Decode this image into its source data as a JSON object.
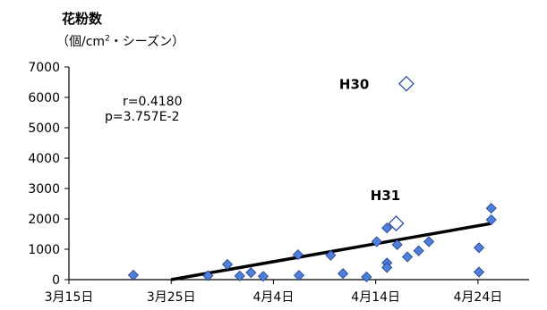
{
  "chart_data": {
    "type": "scatter",
    "ylabel_line1": "花粉数",
    "ylabel_line2_prefix": "（個/cm",
    "ylabel_line2_sup": "2",
    "ylabel_line2_suffix": "・シーズン）",
    "xlabel": "",
    "ylim": [
      0,
      7000
    ],
    "yticks": [
      0,
      1000,
      2000,
      3000,
      4000,
      5000,
      6000,
      7000
    ],
    "xlim_days_from_mar15": [
      0,
      45
    ],
    "xticks": [
      {
        "day": 0,
        "label": "3月15日"
      },
      {
        "day": 10,
        "label": "3月25日"
      },
      {
        "day": 20,
        "label": "4月4日"
      },
      {
        "day": 30,
        "label": "4月14日"
      },
      {
        "day": 40,
        "label": "4月24日"
      }
    ],
    "grid": false,
    "stats": {
      "r": "r=0.4180",
      "p": "p=3.757E-2"
    },
    "series": [
      {
        "style": "filled",
        "points": [
          {
            "x": 6.3,
            "y": 150
          },
          {
            "x": 13.6,
            "y": 130
          },
          {
            "x": 15.5,
            "y": 500
          },
          {
            "x": 16.7,
            "y": 120
          },
          {
            "x": 17.8,
            "y": 230
          },
          {
            "x": 19.0,
            "y": 110
          },
          {
            "x": 22.4,
            "y": 820
          },
          {
            "x": 22.5,
            "y": 140
          },
          {
            "x": 25.6,
            "y": 800
          },
          {
            "x": 26.8,
            "y": 200
          },
          {
            "x": 29.1,
            "y": 90
          },
          {
            "x": 30.1,
            "y": 1250
          },
          {
            "x": 31.1,
            "y": 1700
          },
          {
            "x": 31.1,
            "y": 550
          },
          {
            "x": 31.1,
            "y": 400
          },
          {
            "x": 32.1,
            "y": 1150
          },
          {
            "x": 33.1,
            "y": 750
          },
          {
            "x": 34.2,
            "y": 950
          },
          {
            "x": 35.2,
            "y": 1250
          },
          {
            "x": 40.1,
            "y": 1050
          },
          {
            "x": 40.1,
            "y": 250
          },
          {
            "x": 41.3,
            "y": 2350
          },
          {
            "x": 41.3,
            "y": 1970
          }
        ]
      },
      {
        "style": "open",
        "points": [
          {
            "x": 32.0,
            "y": 1850,
            "label": "H31"
          },
          {
            "x": 33.0,
            "y": 6450,
            "label": "H30"
          }
        ]
      }
    ],
    "trendline": {
      "x": [
        10.0,
        41.3
      ],
      "y": [
        0,
        1850
      ]
    }
  }
}
